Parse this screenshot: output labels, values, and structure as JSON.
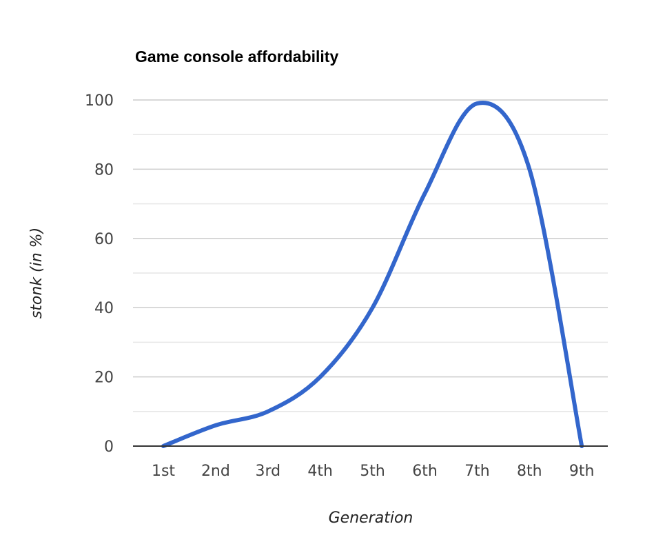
{
  "chart_data": {
    "type": "line",
    "title": "Game console affordability",
    "xlabel": "Generation",
    "ylabel": "stonk (in %)",
    "categories": [
      "1st",
      "2nd",
      "3rd",
      "4th",
      "5th",
      "6th",
      "7th",
      "8th",
      "9th"
    ],
    "series": [
      {
        "values": [
          0,
          6,
          10,
          20,
          40,
          73,
          99,
          80,
          0
        ]
      }
    ],
    "ylim": [
      0,
      100
    ],
    "yticks": [
      0,
      20,
      40,
      60,
      80,
      100
    ],
    "ytick_labels": [
      "0",
      "20",
      "40",
      "60",
      "80",
      "100"
    ],
    "minor_gridlines": true,
    "grid": true,
    "legend": "none",
    "smooth": true,
    "colors": {
      "line": "#3366cc",
      "grid_major": "#cccccc",
      "grid_minor": "#e6e6e6",
      "baseline": "#333333"
    }
  }
}
